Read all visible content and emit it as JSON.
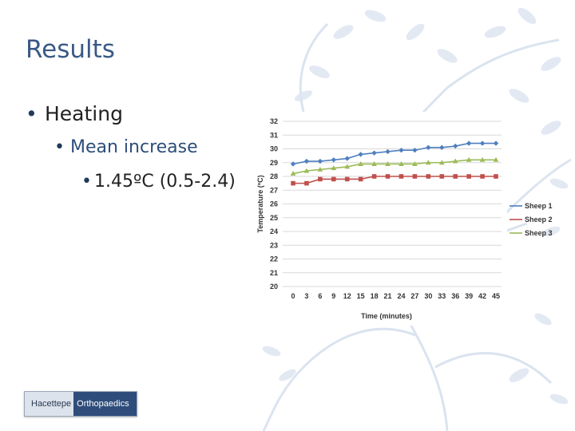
{
  "slide": {
    "title": "Results",
    "bullets": [
      {
        "text": "Heating"
      },
      {
        "text": "Mean increase"
      },
      {
        "text": "1.45ºC (0.5-2.4)"
      }
    ]
  },
  "logo": {
    "left_text": "Hacettepe",
    "right_text": "Orthopaedics"
  },
  "colors": {
    "title": "#3a5a86",
    "sheep1": "#4f7fbf",
    "sheep2": "#c0504d",
    "sheep3": "#9bbb59"
  },
  "chart_data": {
    "type": "line",
    "title": "",
    "xlabel": "Time (minutes)",
    "ylabel": "Temperature (ºC)",
    "x": [
      0,
      3,
      6,
      9,
      12,
      15,
      18,
      21,
      24,
      27,
      30,
      33,
      36,
      39,
      42,
      45
    ],
    "ylim": [
      20,
      32
    ],
    "yticks": [
      20,
      21,
      22,
      23,
      24,
      25,
      26,
      27,
      28,
      29,
      30,
      31,
      32
    ],
    "grid": true,
    "legend": "right",
    "series": [
      {
        "name": "Sheep 1",
        "color": "#4f7fbf",
        "marker": "diamond",
        "values": [
          28.9,
          29.1,
          29.1,
          29.2,
          29.3,
          29.6,
          29.7,
          29.8,
          29.9,
          29.9,
          30.1,
          30.1,
          30.2,
          30.4,
          30.4,
          30.4
        ]
      },
      {
        "name": "Sheep 2",
        "color": "#c0504d",
        "marker": "square",
        "values": [
          27.5,
          27.5,
          27.8,
          27.8,
          27.8,
          27.8,
          28.0,
          28.0,
          28.0,
          28.0,
          28.0,
          28.0,
          28.0,
          28.0,
          28.0,
          28.0
        ]
      },
      {
        "name": "Sheep 3",
        "color": "#9bbb59",
        "marker": "triangle",
        "values": [
          28.2,
          28.4,
          28.5,
          28.6,
          28.7,
          28.9,
          28.9,
          28.9,
          28.9,
          28.9,
          29.0,
          29.0,
          29.1,
          29.2,
          29.2,
          29.2
        ]
      }
    ]
  }
}
